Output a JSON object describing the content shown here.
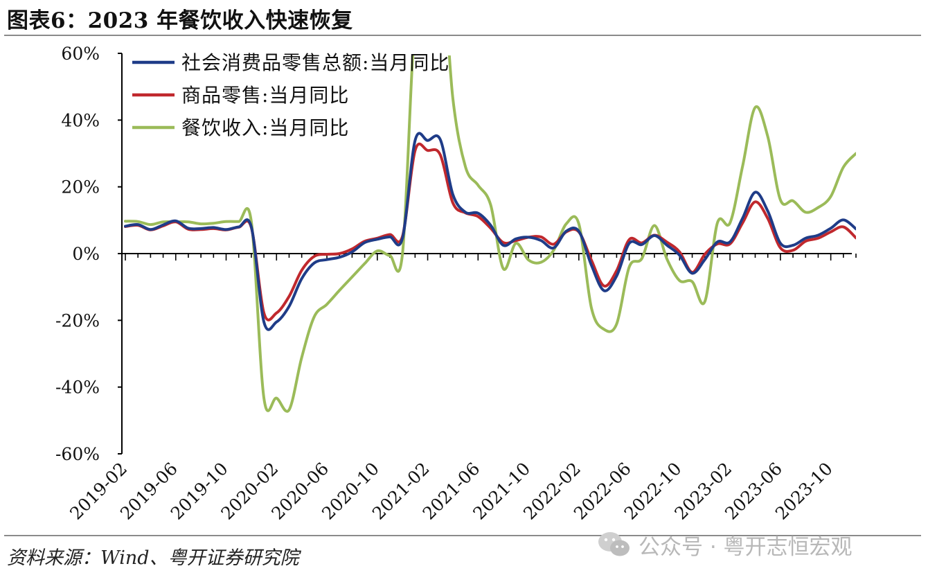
{
  "header": {
    "title": "图表6：2023 年餐饮收入快速恢复"
  },
  "footer": {
    "source": "资料来源：Wind、粤开证券研究院"
  },
  "watermark": {
    "text": "公众号 · 粤开志恒宏观",
    "icon": "wechat-icon"
  },
  "chart_data": {
    "type": "line",
    "title": "",
    "xlabel": "",
    "ylabel": "",
    "ylim": [
      -0.6,
      0.6
    ],
    "yticks": [
      "60%",
      "40%",
      "20%",
      "0%",
      "-20%",
      "-40%",
      "-60%"
    ],
    "xticks": [
      "2019-02",
      "2019-06",
      "2019-10",
      "2020-02",
      "2020-06",
      "2020-10",
      "2021-02",
      "2021-06",
      "2021-10",
      "2022-02",
      "2022-06",
      "2022-10",
      "2023-02",
      "2023-06",
      "2023-10"
    ],
    "legend_position": "top-left",
    "x": [
      "2019-02",
      "2019-03",
      "2019-04",
      "2019-05",
      "2019-06",
      "2019-07",
      "2019-08",
      "2019-09",
      "2019-10",
      "2019-11",
      "2019-12",
      "2020-01",
      "2020-02",
      "2020-03",
      "2020-04",
      "2020-05",
      "2020-06",
      "2020-07",
      "2020-08",
      "2020-09",
      "2020-10",
      "2020-11",
      "2020-12",
      "2021-01",
      "2021-02",
      "2021-03",
      "2021-04",
      "2021-05",
      "2021-06",
      "2021-07",
      "2021-08",
      "2021-09",
      "2021-10",
      "2021-11",
      "2021-12",
      "2022-01",
      "2022-02",
      "2022-03",
      "2022-04",
      "2022-05",
      "2022-06",
      "2022-07",
      "2022-08",
      "2022-09",
      "2022-10",
      "2022-11",
      "2022-12",
      "2023-01",
      "2023-02",
      "2023-03",
      "2023-04",
      "2023-05",
      "2023-06",
      "2023-07",
      "2023-08",
      "2023-09",
      "2023-10",
      "2023-11",
      "2023-12"
    ],
    "series": [
      {
        "name": "社会消费品零售总额:当月同比",
        "color": "#1f3c88",
        "values": [
          0.082,
          0.087,
          0.072,
          0.086,
          0.098,
          0.076,
          0.075,
          0.078,
          0.072,
          0.08,
          0.08,
          -0.205,
          -0.205,
          -0.158,
          -0.075,
          -0.028,
          -0.018,
          -0.011,
          0.005,
          0.033,
          0.043,
          0.05,
          0.046,
          0.339,
          0.339,
          0.342,
          0.177,
          0.124,
          0.121,
          0.085,
          0.025,
          0.044,
          0.049,
          0.039,
          0.017,
          0.067,
          0.067,
          -0.035,
          -0.111,
          -0.067,
          0.031,
          0.027,
          0.054,
          0.025,
          -0.005,
          -0.059,
          -0.018,
          0.035,
          0.035,
          0.106,
          0.184,
          0.127,
          0.031,
          0.025,
          0.046,
          0.055,
          0.076,
          0.101,
          0.074
        ]
      },
      {
        "name": "商品零售:当月同比",
        "color": "#c0282d",
        "values": [
          0.081,
          0.085,
          0.071,
          0.083,
          0.095,
          0.073,
          0.072,
          0.075,
          0.071,
          0.079,
          0.078,
          -0.178,
          -0.178,
          -0.128,
          -0.05,
          -0.008,
          -0.002,
          0.0,
          0.014,
          0.037,
          0.046,
          0.057,
          0.052,
          0.309,
          0.309,
          0.296,
          0.152,
          0.122,
          0.111,
          0.076,
          0.033,
          0.039,
          0.049,
          0.05,
          0.028,
          0.065,
          0.065,
          -0.02,
          -0.097,
          -0.051,
          0.042,
          0.032,
          0.055,
          0.034,
          0.005,
          -0.056,
          -0.002,
          0.029,
          0.029,
          0.092,
          0.155,
          0.105,
          0.017,
          0.01,
          0.037,
          0.046,
          0.065,
          0.08,
          0.047
        ]
      },
      {
        "name": "餐饮收入:当月同比",
        "color": "#9bbb59",
        "values": [
          0.097,
          0.096,
          0.087,
          0.095,
          0.095,
          0.095,
          0.089,
          0.091,
          0.096,
          0.096,
          0.096,
          -0.433,
          -0.433,
          -0.468,
          -0.311,
          -0.189,
          -0.152,
          -0.11,
          -0.07,
          -0.03,
          0.008,
          -0.006,
          0.0,
          0.69,
          0.69,
          0.911,
          0.465,
          0.26,
          0.205,
          0.146,
          -0.045,
          0.031,
          -0.019,
          -0.026,
          0.01,
          0.089,
          0.089,
          -0.163,
          -0.227,
          -0.211,
          -0.04,
          -0.015,
          0.084,
          -0.017,
          -0.081,
          -0.084,
          -0.144,
          0.092,
          0.092,
          0.262,
          0.438,
          0.35,
          0.161,
          0.158,
          0.124,
          0.138,
          0.171,
          0.259,
          0.3
        ]
      }
    ]
  }
}
